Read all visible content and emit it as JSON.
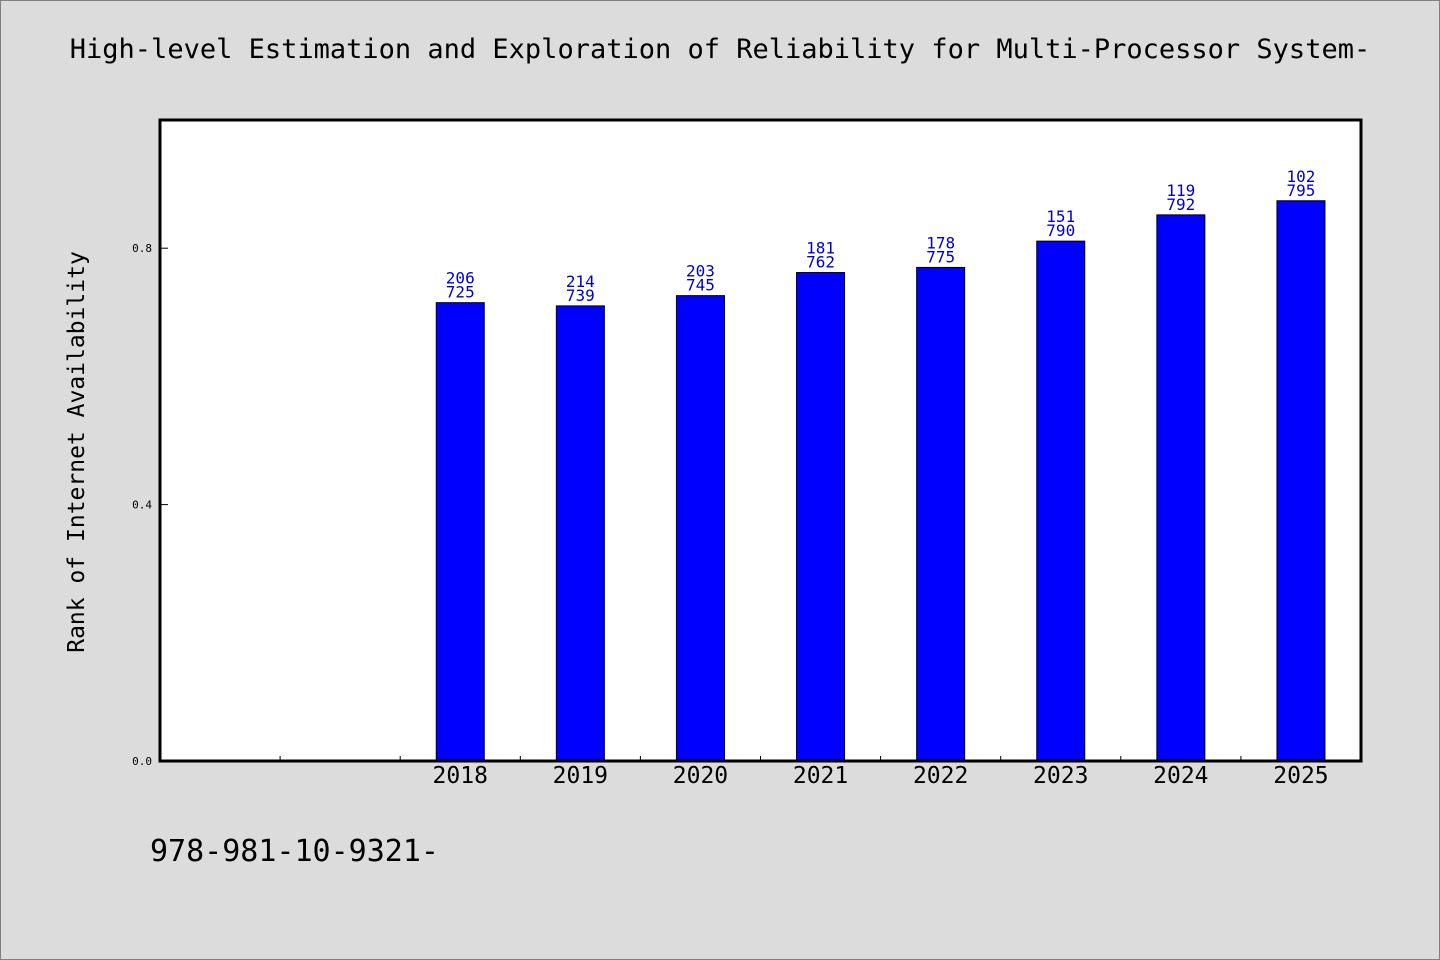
{
  "footer_text": "978-981-10-9321-",
  "colors": {
    "background": "#dcdcdc",
    "plot_background": "#ffffff",
    "bar_fill": "#0000ff",
    "bar_label": "#0000cc",
    "axis": "#000000"
  },
  "chart_data": {
    "type": "bar",
    "title": "High-level Estimation and Exploration of Reliability for Multi-Processor System-",
    "xlabel": "",
    "ylabel": "Rank of Internet Availability",
    "ylim": [
      0,
      1.0
    ],
    "yticks": [
      "0.0",
      "0.4",
      "0.8"
    ],
    "ytick_values": [
      0.0,
      0.4,
      0.8
    ],
    "grid": false,
    "x_slots": 10,
    "categories": [
      "2018",
      "2019",
      "2020",
      "2021",
      "2022",
      "2023",
      "2024",
      "2025"
    ],
    "category_slots": [
      2,
      3,
      4,
      5,
      6,
      7,
      8,
      9
    ],
    "values": [
      0.715,
      0.71,
      0.726,
      0.762,
      0.77,
      0.811,
      0.852,
      0.874
    ],
    "bar_labels_top": [
      "206",
      "214",
      "203",
      "181",
      "178",
      "151",
      "119",
      "102"
    ],
    "bar_labels_bottom": [
      "725",
      "739",
      "745",
      "762",
      "775",
      "790",
      "792",
      "795"
    ]
  }
}
